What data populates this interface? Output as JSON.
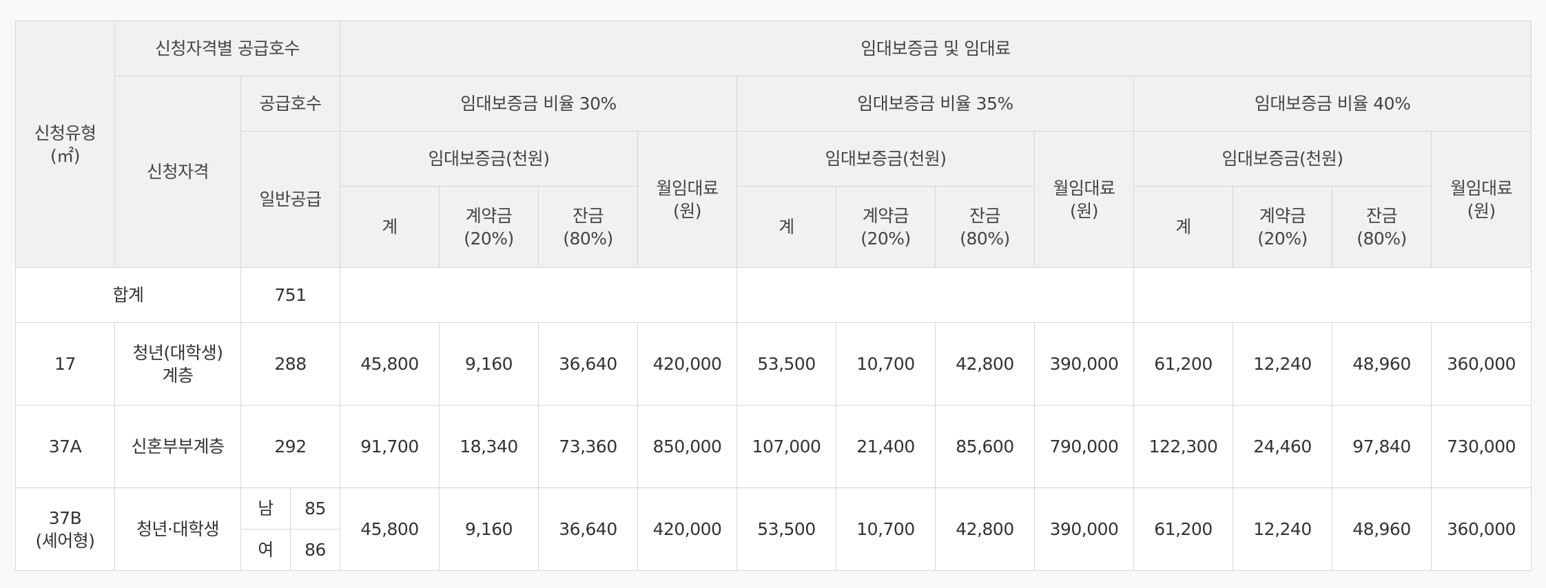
{
  "header": {
    "type": "신청유형",
    "type_unit": "(㎡)",
    "supply_by_qual": "신청자격별 공급호수",
    "qualification": "신청자격",
    "supply_count": "공급호수",
    "general_supply": "일반공급",
    "deposit_and_rent": "임대보증금 및 임대료",
    "ratio_groups": [
      {
        "label": "임대보증금 비율 30%"
      },
      {
        "label": "임대보증금 비율 35%"
      },
      {
        "label": "임대보증금 비율 40%"
      }
    ],
    "deposit_thousand_won": "임대보증금(천원)",
    "monthly_rent": "월임대료",
    "monthly_rent_unit": "(원)",
    "total": "계",
    "contract": "계약금",
    "contract_pct": "(20%)",
    "balance": "잔금",
    "balance_pct": "(80%)"
  },
  "summary": {
    "label": "합계",
    "count": "751"
  },
  "rows": [
    {
      "type": "17",
      "qualification_line1": "청년(대학생)",
      "qualification_line2": "계층",
      "count": "288",
      "values": [
        "45,800",
        "9,160",
        "36,640",
        "420,000",
        "53,500",
        "10,700",
        "42,800",
        "390,000",
        "61,200",
        "12,240",
        "48,960",
        "360,000"
      ]
    },
    {
      "type": "37A",
      "qualification_line1": "신혼부부계층",
      "count": "292",
      "values": [
        "91,700",
        "18,340",
        "73,360",
        "850,000",
        "107,000",
        "21,400",
        "85,600",
        "790,000",
        "122,300",
        "24,460",
        "97,840",
        "730,000"
      ]
    },
    {
      "type_line1": "37B",
      "type_line2": "(셰어형)",
      "qualification_line1": "청년·대학생",
      "gender_male": "남",
      "count_male": "85",
      "gender_female": "여",
      "count_female": "86",
      "values": [
        "45,800",
        "9,160",
        "36,640",
        "420,000",
        "53,500",
        "10,700",
        "42,800",
        "390,000",
        "61,200",
        "12,240",
        "48,960",
        "360,000"
      ]
    }
  ]
}
